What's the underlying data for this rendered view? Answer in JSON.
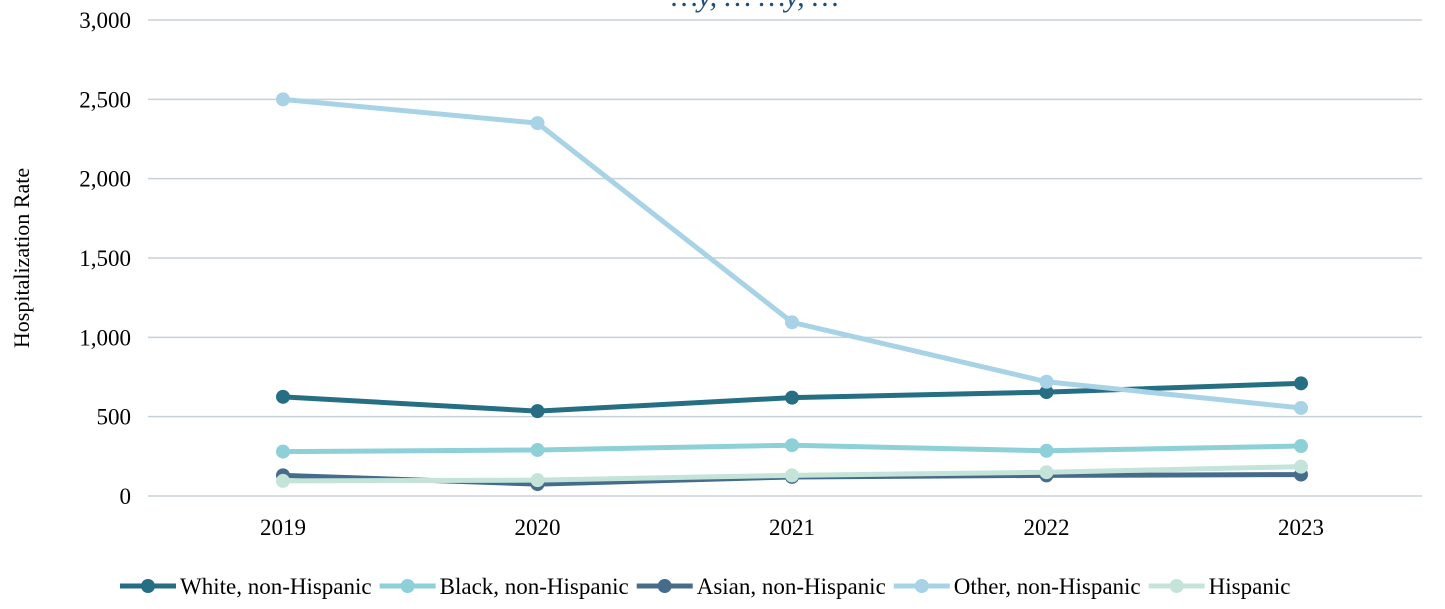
{
  "chart_data": {
    "type": "line",
    "title": "…y, … …y, …",
    "xlabel": "",
    "ylabel": "Hospitalization Rate",
    "categories": [
      "2019",
      "2020",
      "2021",
      "2022",
      "2023"
    ],
    "ylim": [
      0,
      3000
    ],
    "yticks": [
      0,
      500,
      1000,
      1500,
      2000,
      2500,
      3000
    ],
    "ytick_labels": [
      "0",
      "500",
      "1,000",
      "1,500",
      "2,000",
      "2,500",
      "3,000"
    ],
    "grid": true,
    "legend_position": "bottom",
    "series": [
      {
        "name": "White, non-Hispanic",
        "color": "#256e83",
        "values": [
          625,
          535,
          620,
          655,
          710
        ]
      },
      {
        "name": "Black, non-Hispanic",
        "color": "#8ed0d8",
        "values": [
          280,
          290,
          320,
          285,
          315
        ]
      },
      {
        "name": "Asian, non-Hispanic",
        "color": "#466c8c",
        "values": [
          130,
          75,
          120,
          130,
          135
        ]
      },
      {
        "name": "Other, non-Hispanic",
        "color": "#a8d3e6",
        "values": [
          2500,
          2350,
          1095,
          720,
          555
        ]
      },
      {
        "name": "Hispanic",
        "color": "#c4e4da",
        "values": [
          95,
          100,
          130,
          150,
          185
        ]
      }
    ]
  }
}
